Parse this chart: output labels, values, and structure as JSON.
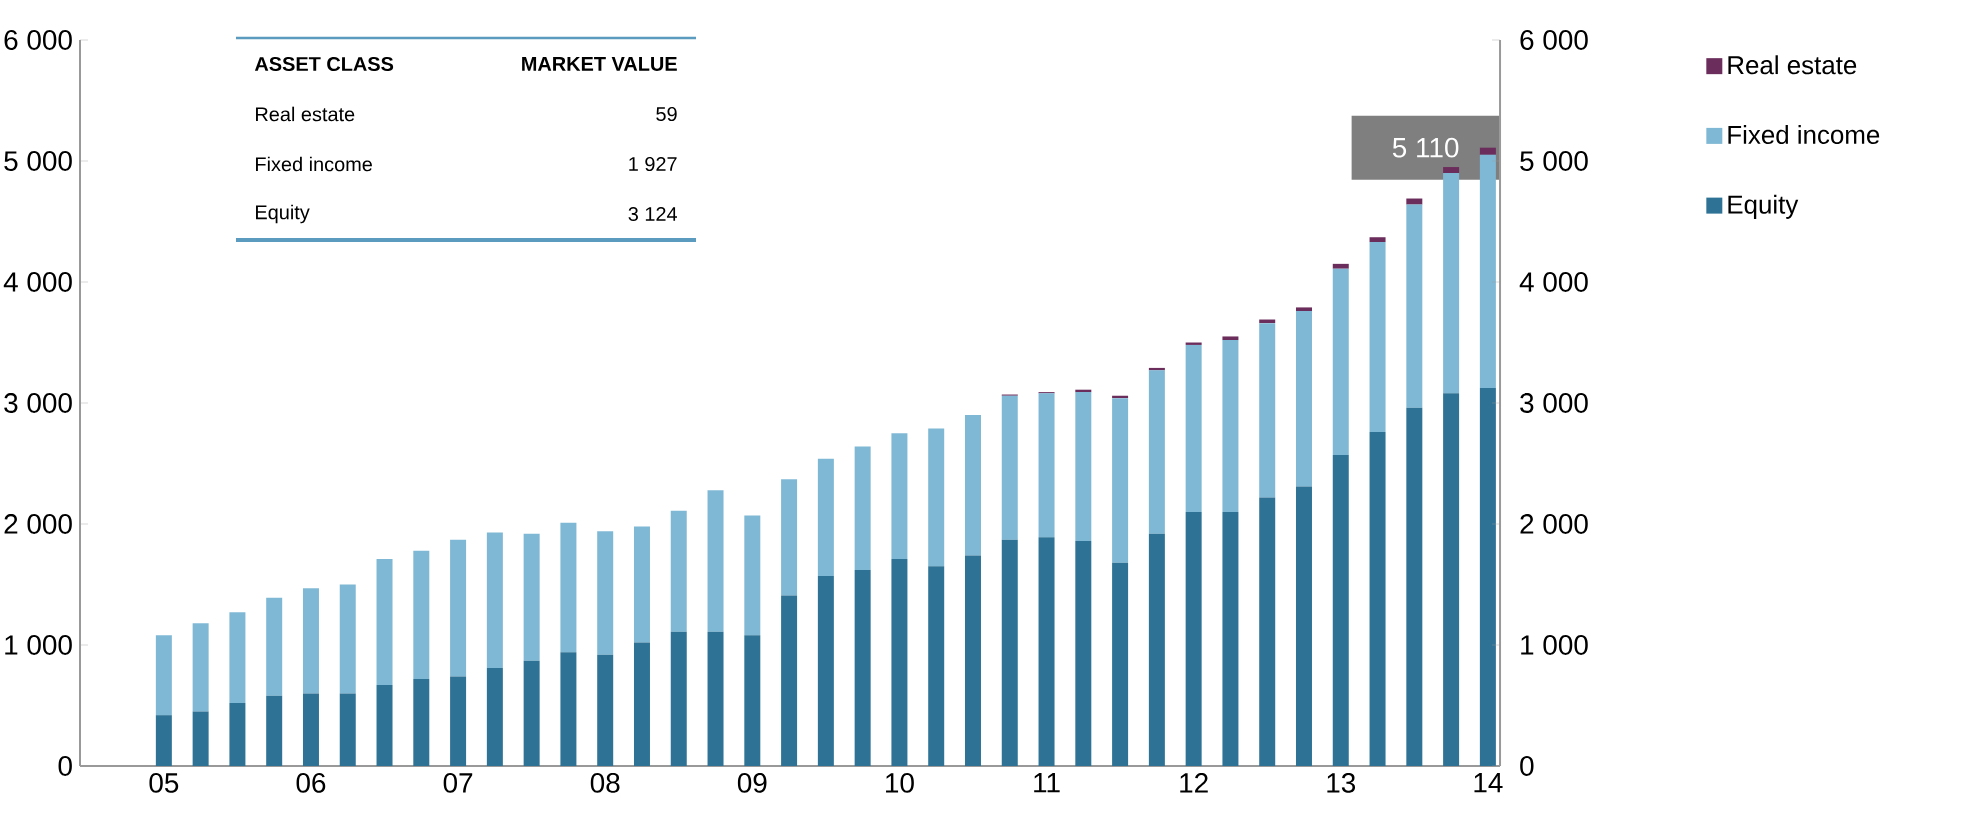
{
  "chart_data": {
    "type": "bar",
    "stacked": true,
    "categories": [
      "05",
      null,
      null,
      null,
      "06",
      null,
      null,
      null,
      "07",
      null,
      null,
      null,
      "08",
      null,
      null,
      null,
      "09",
      null,
      null,
      null,
      "10",
      null,
      null,
      null,
      "11",
      null,
      null,
      null,
      "12",
      null,
      null,
      null,
      "13",
      null,
      null,
      null,
      "14"
    ],
    "series": [
      {
        "name": "Equity",
        "color": "#2e7396",
        "values": [
          420,
          450,
          520,
          580,
          600,
          600,
          670,
          720,
          740,
          810,
          870,
          940,
          920,
          1020,
          1110,
          1110,
          1080,
          1410,
          1570,
          1620,
          1710,
          1650,
          1740,
          1870,
          1890,
          1860,
          1680,
          1920,
          2100,
          2100,
          2220,
          2310,
          2570,
          2760,
          2960,
          3080,
          3124
        ]
      },
      {
        "name": "Fixed income",
        "color": "#7fb8d4",
        "values": [
          660,
          730,
          750,
          810,
          870,
          900,
          1040,
          1060,
          1130,
          1120,
          1050,
          1070,
          1020,
          960,
          1000,
          1170,
          990,
          960,
          970,
          1020,
          1040,
          1140,
          1160,
          1190,
          1190,
          1230,
          1360,
          1350,
          1380,
          1420,
          1440,
          1450,
          1540,
          1570,
          1680,
          1820,
          1927
        ]
      },
      {
        "name": "Real estate",
        "color": "#6b2d5c",
        "values": [
          0,
          0,
          0,
          0,
          0,
          0,
          0,
          0,
          0,
          0,
          0,
          0,
          0,
          0,
          0,
          0,
          0,
          0,
          0,
          0,
          0,
          0,
          0,
          10,
          10,
          20,
          20,
          20,
          20,
          30,
          30,
          30,
          40,
          40,
          50,
          50,
          59
        ]
      }
    ],
    "totals": [
      null,
      null,
      null,
      null,
      null,
      null,
      null,
      null,
      null,
      null,
      null,
      null,
      null,
      null,
      null,
      null,
      null,
      null,
      null,
      null,
      null,
      null,
      null,
      null,
      null,
      null,
      null,
      null,
      null,
      null,
      null,
      null,
      null,
      null,
      null,
      null,
      "5 110"
    ],
    "ylim": [
      0,
      6000
    ],
    "yticks": [
      0,
      {
        "value": 1000,
        "label": "1 000"
      },
      {
        "value": 2000,
        "label": "2 000"
      },
      {
        "value": 3000,
        "label": "3 000"
      },
      {
        "value": 4000,
        "label": "4 000"
      },
      {
        "value": 5000,
        "label": "5 000"
      },
      {
        "value": 6000,
        "label": "6 000"
      }
    ],
    "y2lim": [
      0,
      6000
    ],
    "y2ticks": [
      0,
      {
        "value": 1000,
        "label": "1 000"
      },
      {
        "value": 2000,
        "label": "2 000"
      },
      {
        "value": 3000,
        "label": "3 000"
      },
      {
        "value": 4000,
        "label": "4 000"
      },
      {
        "value": 5000,
        "label": "5 000"
      },
      {
        "value": 6000,
        "label": "6 000"
      }
    ],
    "legend": "top right",
    "annotations": [
      "ASSET CLASS",
      "MARKET VALUE",
      "Real estate",
      "59",
      "Fixed income",
      "1 927",
      "Equity",
      "3 124"
    ]
  }
}
